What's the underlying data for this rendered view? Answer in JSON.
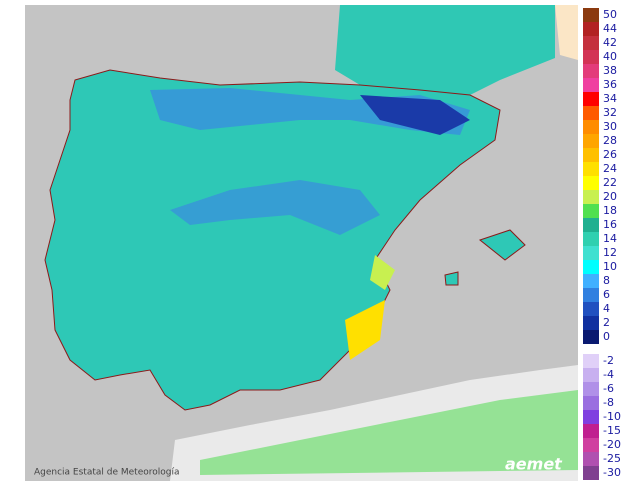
{
  "legend": {
    "positive": [
      {
        "label": 50,
        "color": "#8b3a0f"
      },
      {
        "label": 44,
        "color": "#b22222"
      },
      {
        "label": 42,
        "color": "#c4303c"
      },
      {
        "label": 40,
        "color": "#d33455"
      },
      {
        "label": 38,
        "color": "#e33c7a"
      },
      {
        "label": 36,
        "color": "#f040a0"
      },
      {
        "label": 34,
        "color": "#ff0000"
      },
      {
        "label": 32,
        "color": "#ff5a00"
      },
      {
        "label": 30,
        "color": "#ff8c00"
      },
      {
        "label": 28,
        "color": "#ffa500"
      },
      {
        "label": 26,
        "color": "#ffc000"
      },
      {
        "label": 24,
        "color": "#ffe000"
      },
      {
        "label": 22,
        "color": "#ffff00"
      },
      {
        "label": 20,
        "color": "#c8f050"
      },
      {
        "label": 18,
        "color": "#50e050"
      },
      {
        "label": 16,
        "color": "#20b090"
      },
      {
        "label": 14,
        "color": "#30d0b0"
      },
      {
        "label": 12,
        "color": "#40e0d0"
      },
      {
        "label": 10,
        "color": "#00ffff"
      },
      {
        "label": 8,
        "color": "#40b0ff"
      },
      {
        "label": 6,
        "color": "#3080e0"
      },
      {
        "label": 4,
        "color": "#2050c0"
      },
      {
        "label": 2,
        "color": "#1030a0"
      },
      {
        "label": 0,
        "color": "#0a1a70"
      }
    ],
    "negative": [
      {
        "label": -2,
        "color": "#e0d0f8"
      },
      {
        "label": -4,
        "color": "#c8b0f0"
      },
      {
        "label": -6,
        "color": "#b090e8"
      },
      {
        "label": -8,
        "color": "#9a6ee0"
      },
      {
        "label": -10,
        "color": "#8040e0"
      },
      {
        "label": -15,
        "color": "#c02090"
      },
      {
        "label": -20,
        "color": "#d040a0"
      },
      {
        "label": -25,
        "color": "#b050b0"
      },
      {
        "label": -30,
        "color": "#804090"
      }
    ]
  },
  "credit": "Agencia Estatal de Meteorología",
  "logo": "aemet"
}
